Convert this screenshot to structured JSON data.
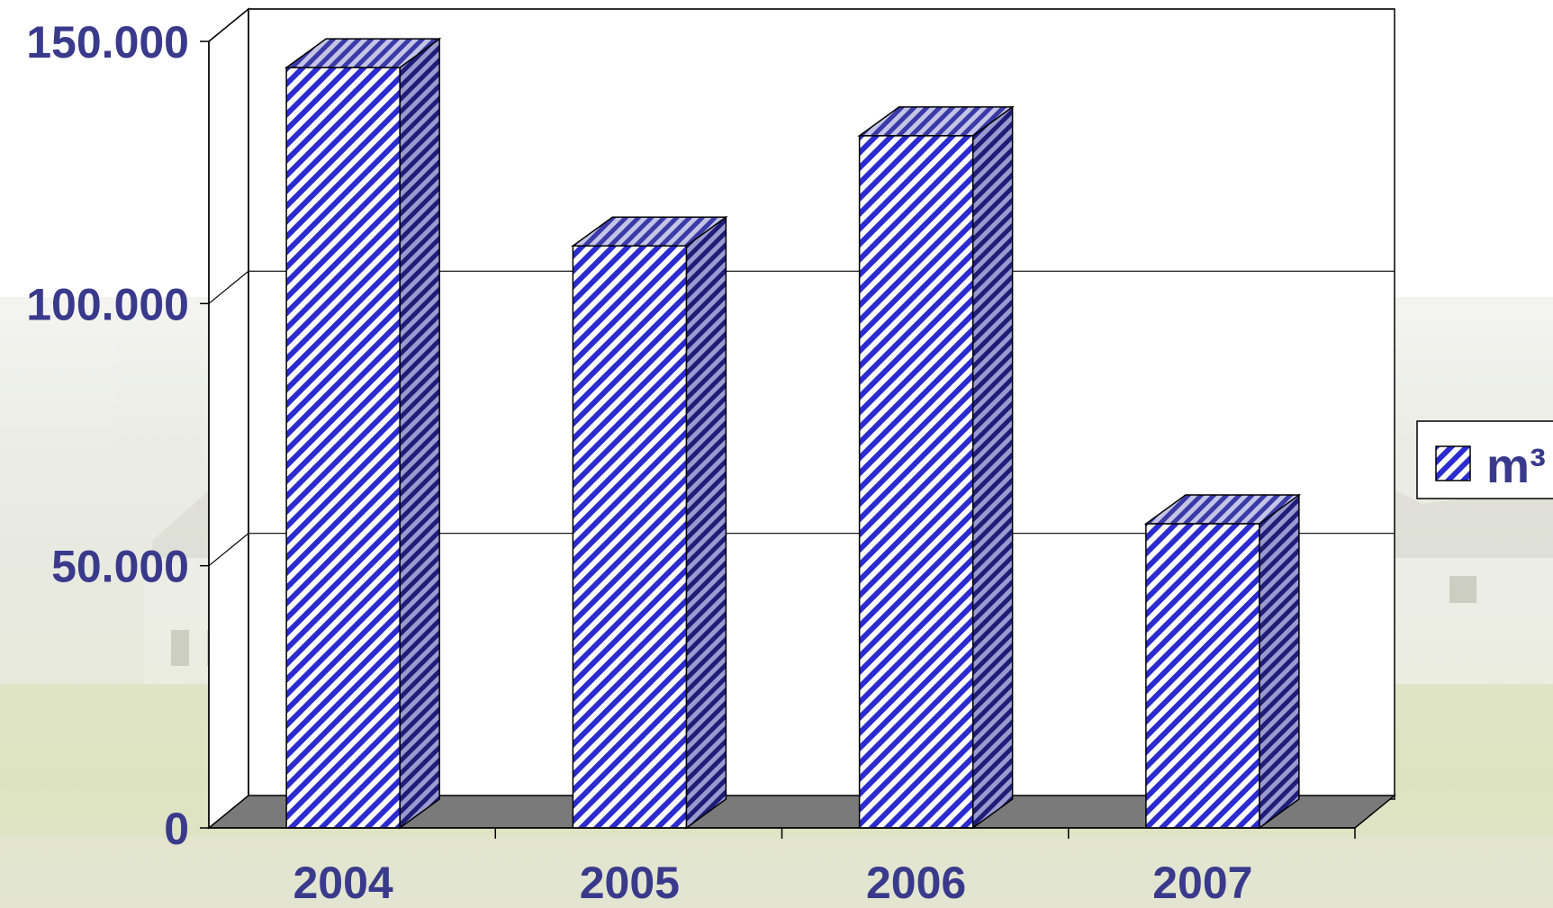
{
  "chart_data": {
    "type": "bar",
    "categories": [
      "2004",
      "2005",
      "2006",
      "2007"
    ],
    "series": [
      {
        "name": "m³",
        "values": [
          145000,
          111000,
          132000,
          58000
        ]
      }
    ],
    "ylim": [
      0,
      150000
    ],
    "yticks": [
      "0",
      "50.000",
      "100.000",
      "150.000"
    ],
    "ytick_values": [
      0,
      50000,
      100000,
      150000
    ],
    "title": "",
    "xlabel": "",
    "ylabel": "",
    "grid": true,
    "legend_position": "right",
    "style": "3d-column-hatched"
  },
  "colors": {
    "bar_front_stripe": "#2b2bd0",
    "bar_side_stripe": "#1e1e78",
    "bar_top_stripe": "#3a3aa8",
    "floor": "#7a7a7a",
    "label_text": "#3a3a8c"
  }
}
